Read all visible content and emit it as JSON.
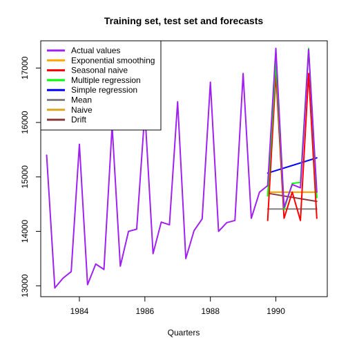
{
  "chart_data": {
    "type": "line",
    "title": "Training set, test set and forecasts",
    "xlabel": "Quarters",
    "ylabel": "",
    "xlim": [
      1982.82,
      1991.57
    ],
    "ylim": [
      12800,
      17500
    ],
    "x_ticks": [
      1984,
      1986,
      1988,
      1990
    ],
    "y_ticks": [
      13000,
      14000,
      15000,
      16000,
      17000
    ],
    "legend_position": "top-left",
    "grid": false,
    "series": [
      {
        "name": "Actual values",
        "color": "#a020f0",
        "points": [
          [
            1983.0,
            15400
          ],
          [
            1983.25,
            12960
          ],
          [
            1983.5,
            13140
          ],
          [
            1983.75,
            13260
          ],
          [
            1984.0,
            15600
          ],
          [
            1984.25,
            13020
          ],
          [
            1984.5,
            13400
          ],
          [
            1984.75,
            13300
          ],
          [
            1985.0,
            15940
          ],
          [
            1985.25,
            13360
          ],
          [
            1985.5,
            14000
          ],
          [
            1985.75,
            14040
          ],
          [
            1986.0,
            16200
          ],
          [
            1986.25,
            13590
          ],
          [
            1986.5,
            14170
          ],
          [
            1986.75,
            14120
          ],
          [
            1987.0,
            16380
          ],
          [
            1987.25,
            13500
          ],
          [
            1987.5,
            14010
          ],
          [
            1987.75,
            14230
          ],
          [
            1988.0,
            16740
          ],
          [
            1988.25,
            14000
          ],
          [
            1988.5,
            14160
          ],
          [
            1988.75,
            14200
          ],
          [
            1989.0,
            16900
          ],
          [
            1989.25,
            14240
          ],
          [
            1989.5,
            14720
          ],
          [
            1989.75,
            14840
          ],
          [
            1990.0,
            17360
          ],
          [
            1990.25,
            14440
          ],
          [
            1990.5,
            14860
          ],
          [
            1990.75,
            14800
          ],
          [
            1991.0,
            17340
          ],
          [
            1991.25,
            14720
          ]
        ]
      },
      {
        "name": "Exponential smoothing",
        "color": "#ffa500",
        "points": [
          [
            1989.75,
            14720
          ],
          [
            1990.0,
            14720
          ],
          [
            1990.25,
            14720
          ],
          [
            1990.5,
            14720
          ],
          [
            1990.75,
            14720
          ],
          [
            1991.0,
            14720
          ],
          [
            1991.25,
            14720
          ]
        ]
      },
      {
        "name": "Seasonal naive",
        "color": "#ff0000",
        "points": [
          [
            1989.75,
            14200
          ],
          [
            1990.0,
            16900
          ],
          [
            1990.25,
            14240
          ],
          [
            1990.5,
            14720
          ],
          [
            1990.75,
            14200
          ],
          [
            1991.0,
            16900
          ],
          [
            1991.25,
            14240
          ]
        ]
      },
      {
        "name": "Multiple regression",
        "color": "#00ff00",
        "points": [
          [
            1989.75,
            14650
          ],
          [
            1990.0,
            17120
          ],
          [
            1990.25,
            14400
          ],
          [
            1990.5,
            14880
          ],
          [
            1990.75,
            14900
          ],
          [
            1991.0,
            17360
          ],
          [
            1991.25,
            14620
          ]
        ]
      },
      {
        "name": "Simple regression",
        "color": "#0000ff",
        "points": [
          [
            1989.75,
            15070
          ],
          [
            1991.25,
            15350
          ]
        ]
      },
      {
        "name": "Mean",
        "color": "#808080",
        "points": [
          [
            1989.75,
            14410
          ],
          [
            1991.25,
            14410
          ]
        ]
      },
      {
        "name": "Naive",
        "color": "#daa520",
        "points": [
          [
            1989.75,
            14720
          ],
          [
            1991.25,
            14720
          ]
        ]
      },
      {
        "name": "Drift",
        "color": "#8b3a3a",
        "points": [
          [
            1989.75,
            14700
          ],
          [
            1991.25,
            14550
          ]
        ]
      }
    ]
  }
}
